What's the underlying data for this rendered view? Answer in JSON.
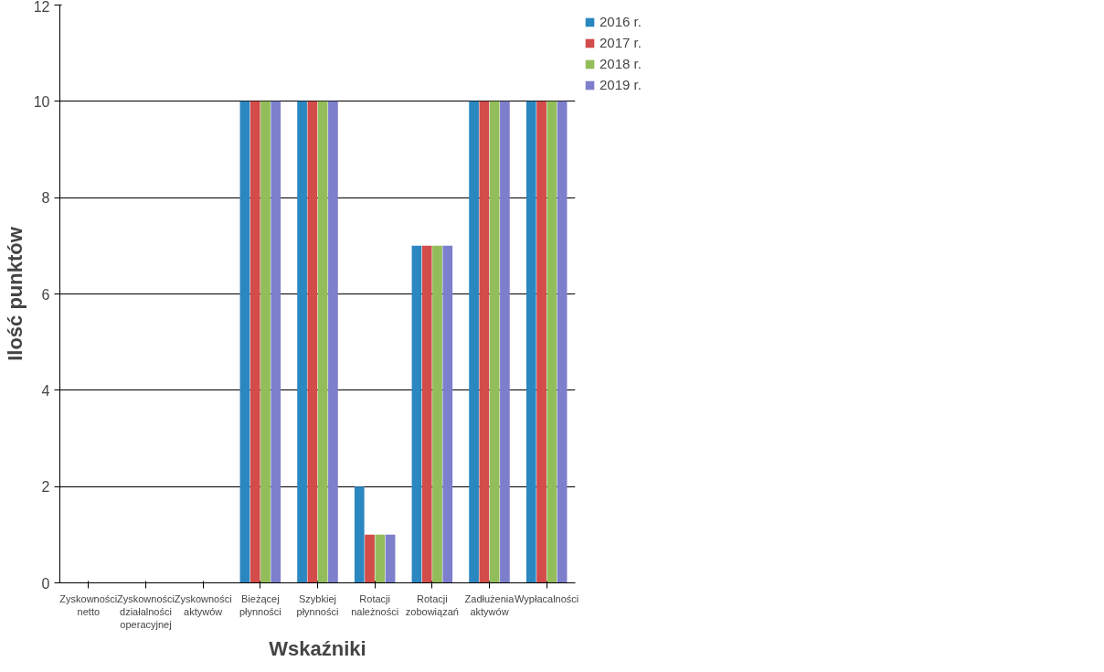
{
  "chart_data": {
    "type": "bar",
    "xlabel": "Wskaźniki",
    "ylabel": "Ilość punktów",
    "categories": [
      "Zyskowności netto",
      "Zyskowności działalności operacyjnej",
      "Zyskowności aktywów",
      "Bieżącej płynności",
      "Szybkiej płynności",
      "Rotacji należności",
      "Rotacji zobowiązań",
      "Zadłużenia aktywów",
      "Wypłacalności"
    ],
    "series": [
      {
        "name": "2016 r.",
        "color": "#2b87c0",
        "values": [
          0,
          0,
          0,
          10,
          10,
          2,
          7,
          10,
          10
        ]
      },
      {
        "name": "2017 r.",
        "color": "#d24c4a",
        "values": [
          0,
          0,
          0,
          10,
          10,
          1,
          7,
          10,
          10
        ]
      },
      {
        "name": "2018 r.",
        "color": "#93bd5a",
        "values": [
          0,
          0,
          0,
          10,
          10,
          1,
          7,
          10,
          10
        ]
      },
      {
        "name": "2019 r.",
        "color": "#7d7fcc",
        "values": [
          0,
          0,
          0,
          10,
          10,
          1,
          7,
          10,
          10
        ]
      }
    ],
    "ylim": [
      0,
      12
    ],
    "yticks": [
      0,
      2,
      4,
      6,
      8,
      10,
      12
    ],
    "grid": "y",
    "legend": "right"
  }
}
